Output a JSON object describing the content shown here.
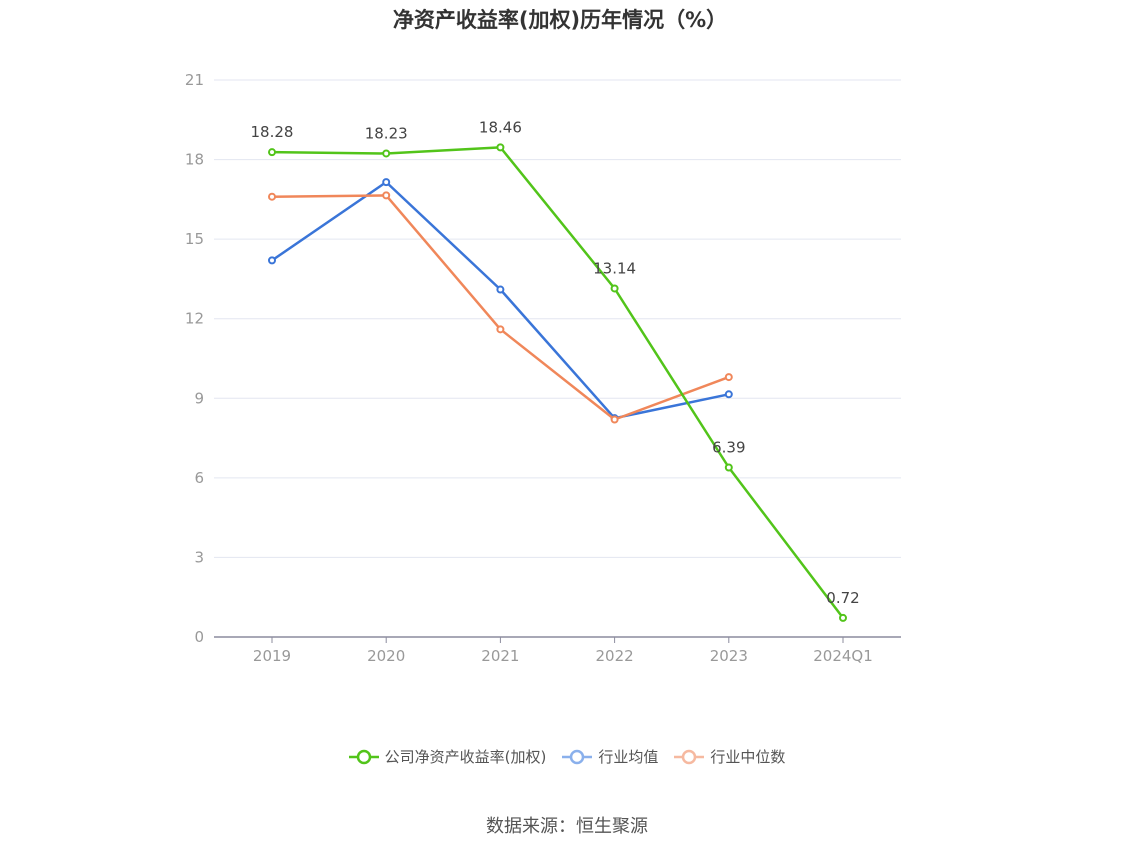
{
  "chart_data": {
    "type": "line",
    "title": "净资产收益率(加权)历年情况（%）",
    "categories": [
      "2019",
      "2020",
      "2021",
      "2022",
      "2023",
      "2024Q1"
    ],
    "ylim": [
      0,
      21
    ],
    "yticks": [
      "0",
      "3",
      "6",
      "9",
      "12",
      "15",
      "18",
      "21"
    ],
    "grid": true,
    "legend_position": "bottom",
    "series": [
      {
        "name": "公司净资产收益率(加权)",
        "color": "#52c41a",
        "values": [
          18.28,
          18.23,
          18.46,
          13.14,
          6.39,
          0.72
        ],
        "labels": [
          "18.28",
          "18.23",
          "18.46",
          "13.14",
          "6.39",
          "0.72"
        ]
      },
      {
        "name": "行业均值",
        "color": "#3a75d8",
        "values": [
          14.2,
          17.15,
          13.1,
          8.25,
          9.15,
          null
        ]
      },
      {
        "name": "行业中位数",
        "color": "#f0875a",
        "values": [
          16.6,
          16.65,
          11.6,
          8.2,
          9.8,
          null
        ]
      }
    ],
    "legend_colors": [
      "#52c41a",
      "#8ab0ec",
      "#f6b9a0"
    ]
  },
  "source": "数据来源：恒生聚源"
}
